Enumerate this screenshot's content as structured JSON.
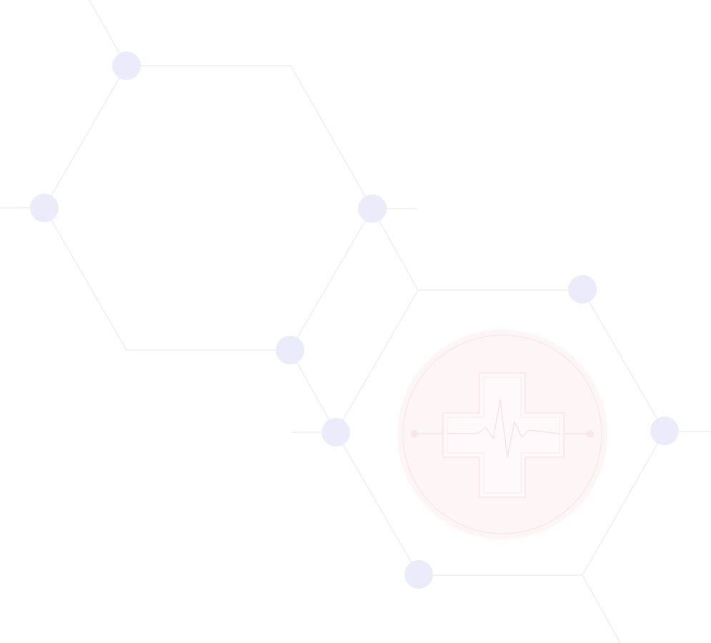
{
  "background": {
    "color": "#ffffff",
    "network": {
      "edge_color": "#eeeff5",
      "node_color": "#ebebfa"
    }
  },
  "emblem": {
    "icon": "medical-cross-heartbeat-icon",
    "circle_color": "#fdf5f6",
    "cross_color": "#fefafb"
  }
}
